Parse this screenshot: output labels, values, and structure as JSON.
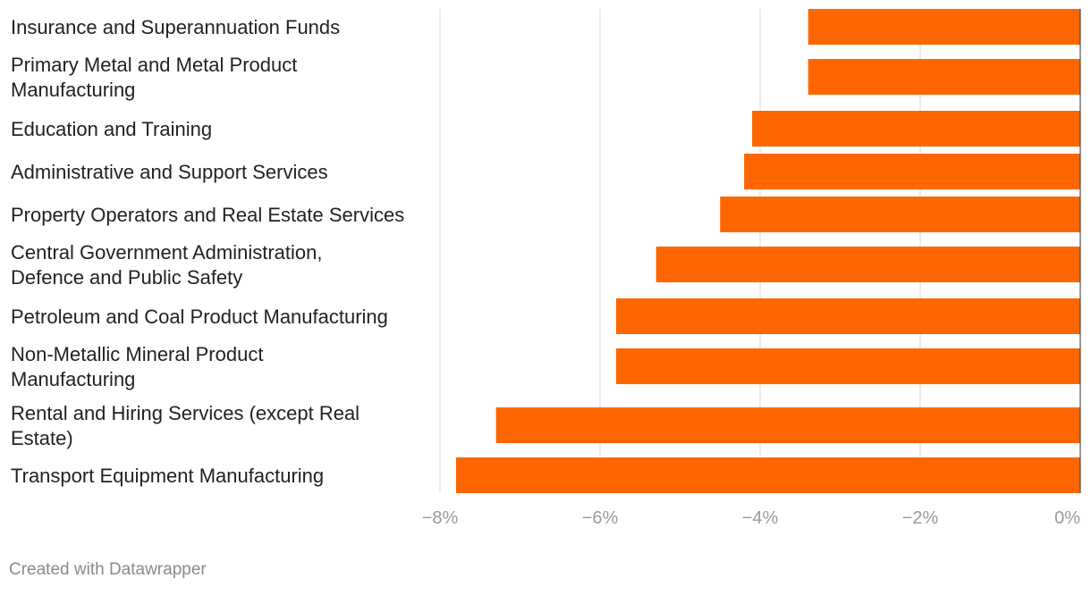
{
  "chart_data": {
    "type": "bar",
    "orientation": "horizontal",
    "title": "",
    "xlabel": "",
    "ylabel": "",
    "xlim": [
      -8,
      0
    ],
    "categories": [
      [
        "Insurance and Superannuation Funds"
      ],
      [
        "Primary Metal and Metal Product",
        "Manufacturing"
      ],
      [
        "Education and Training"
      ],
      [
        "Administrative and Support Services"
      ],
      [
        "Property Operators and Real Estate Services"
      ],
      [
        "Central Government Administration,",
        "Defence and Public Safety"
      ],
      [
        "Petroleum and Coal Product Manufacturing"
      ],
      [
        "Non-Metallic Mineral Product",
        "Manufacturing"
      ],
      [
        "Rental and Hiring Services (except Real",
        "Estate)"
      ],
      [
        "Transport Equipment Manufacturing"
      ]
    ],
    "values": [
      -3.4,
      -3.4,
      -4.1,
      -4.2,
      -4.5,
      -5.3,
      -5.8,
      -5.8,
      -7.3,
      -7.8
    ],
    "ticks": [
      -8,
      -6,
      -4,
      -2,
      0
    ],
    "tick_labels": [
      "−8%",
      "−6%",
      "−4%",
      "−2%",
      "0%"
    ],
    "grid": true,
    "bar_color": "#ff6600",
    "grid_color": "#e6e6e6"
  },
  "footer": {
    "credit": "Created with Datawrapper"
  }
}
